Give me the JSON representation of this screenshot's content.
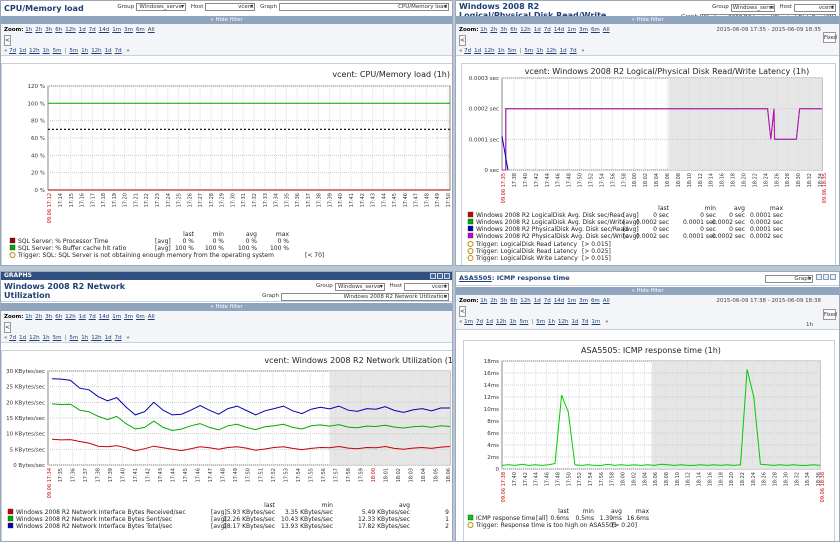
{
  "labels": {
    "group": "Group",
    "host": "Host",
    "graph": "Graph",
    "zoom": "Zoom:",
    "hide_filter": "« Hide filter",
    "hide_filter2": "« Hide filter",
    "all": "All"
  },
  "p1": {
    "title": "CPU/Memory load",
    "group": "Windows_server",
    "host": "vcent",
    "graph": "CPU/Memory load",
    "zoom_items": [
      "1h",
      "2h",
      "3h",
      "6h",
      "12h",
      "1d",
      "7d",
      "14d",
      "1m",
      "3m",
      "6m",
      "All"
    ],
    "zoom_active": "1h",
    "nav_items": [
      "7d",
      "1d",
      "12h",
      "1h",
      "5m",
      "|",
      "5m",
      "1h",
      "12h",
      "1d",
      "7d"
    ],
    "chart_title": "vcent: CPU/Memory load (1h)",
    "date_label": "09.06 17:12",
    "legend_header": [
      "last",
      "min",
      "avg",
      "max"
    ],
    "legend": [
      {
        "color": "#990000",
        "name": "SQL Server: % Processor Time",
        "agg": "[avg]",
        "last": "0 %",
        "min": "0 %",
        "avg": "0 %",
        "max": "0 %"
      },
      {
        "color": "#00aa00",
        "name": "SQL Server: % Buffer cache hit ratio",
        "agg": "[avg]",
        "last": "100 %",
        "min": "100 %",
        "avg": "100 %",
        "max": "100 %"
      }
    ],
    "trigger": "Trigger: SQL: SQL Server is not obtaining enough memory from the operating system",
    "trigger_cond": "[< 70]"
  },
  "p2": {
    "title": "Windows 2008 R2 Logical/Physical Disk Read/Write Latency",
    "group": "Windows_server",
    "host": "vcent",
    "graph": "Windows 2008 R2 Logical/Physical Disk Read/Write Laten",
    "zoom_items": [
      "1h",
      "2h",
      "3h",
      "6h",
      "12h",
      "1d",
      "7d",
      "14d",
      "1m",
      "3m",
      "6m",
      "All"
    ],
    "nav_items": [
      "7d",
      "1d",
      "12h",
      "1h",
      "5m",
      "|",
      "5m",
      "1h",
      "12h",
      "1d",
      "7d"
    ],
    "period_from": "2015-06-09 17:35",
    "period_to": "2015-06-09 18:35",
    "fixed": "Fixed",
    "chart_title": "vcent: Windows 2008 R2 Logical/Physical Disk Read/Write Latency (1h)",
    "date_label_left": "09.06 17:35",
    "date_label_right": "09.06 18:35",
    "legend_header": [
      "last",
      "min",
      "avg",
      "max"
    ],
    "legend": [
      {
        "color": "#cc0000",
        "name": "Windows 2008 R2 LogicalDisk Avg. Disk sec/Read",
        "agg": "[avg]",
        "last": "0 sec",
        "min": "0 sec",
        "avg": "0 sec",
        "max": "0.0001 sec"
      },
      {
        "color": "#00aa00",
        "name": "Windows 2008 R2 LogicalDisk Avg. Disk sec/Write",
        "agg": "[avg]",
        "last": "0.0002 sec",
        "min": "0.0001 sec",
        "avg": "0.0002 sec",
        "max": "0.0002 sec"
      },
      {
        "color": "#0000cc",
        "name": "Windows 2008 R2 PhysicalDisk Avg. Disk sec/Read",
        "agg": "[avg]",
        "last": "0 sec",
        "min": "0 sec",
        "avg": "0 sec",
        "max": "0.0001 sec"
      },
      {
        "color": "#cc00cc",
        "name": "Windows 2008 R2 PhysicalDisk Avg. Disk sec/Write",
        "agg": "[avg]",
        "last": "0.0002 sec",
        "min": "0.0001 sec",
        "avg": "0.0002 sec",
        "max": "0.0002 sec"
      }
    ],
    "triggers": [
      {
        "text": "Trigger: LogicalDisk Read Latency",
        "cond": "[> 0.015]"
      },
      {
        "text": "Trigger: LogicalDisk Read Latency",
        "cond": "[> 0.025]"
      },
      {
        "text": "Trigger: LogicalDisk Write Latency",
        "cond": "[> 0.015]"
      }
    ]
  },
  "p3": {
    "bar": "GRAPHS",
    "title": "Windows 2008 R2 Network Utilization",
    "group": "Windows_server",
    "host": "vcent",
    "graph": "Windows 2008 R2 Network Utilization",
    "zoom_items": [
      "1h",
      "2h",
      "3h",
      "6h",
      "12h",
      "1d",
      "7d",
      "14d",
      "1m",
      "3m",
      "6m",
      "All"
    ],
    "nav_items": [
      "7d",
      "1d",
      "12h",
      "1h",
      "5m",
      "|",
      "5m",
      "1h",
      "12h",
      "1d",
      "7d"
    ],
    "chart_title": "vcent: Windows 2008 R2 Network Utilization (1",
    "date_label": "09.06 17:34",
    "legend_header": [
      "last",
      "min",
      "avg"
    ],
    "legend": [
      {
        "color": "#cc0000",
        "name": "Windows 2008 R2 Network Interface Bytes Received/sec",
        "agg": "[avg]",
        "last": "5.93 KBytes/sec",
        "min": "3.35 KBytes/sec",
        "avg": "5.49 KBytes/sec",
        "max": "9"
      },
      {
        "color": "#00aa00",
        "name": "Windows 2008 R2 Network Interface Bytes Sent/sec",
        "agg": "[avg]",
        "last": "12.26 KBytes/sec",
        "min": "10.43 KBytes/sec",
        "avg": "12.33 KBytes/sec",
        "max": "1"
      },
      {
        "color": "#0000aa",
        "name": "Windows 2008 R2 Network Interface Bytes Total/sec",
        "agg": "[avg]",
        "last": "18.17 KBytes/sec",
        "min": "13.93 KBytes/sec",
        "avg": "17.82 KBytes/sec",
        "max": "2"
      }
    ]
  },
  "p4": {
    "title_link": "ASA5505",
    "title_rest": ": ICMP response time",
    "graph": "Graph",
    "zoom_items": [
      "1h",
      "2h",
      "3h",
      "6h",
      "12h",
      "1d",
      "7d",
      "14d",
      "1m",
      "3m",
      "6m",
      "All"
    ],
    "nav_items": [
      "1m",
      "7d",
      "1d",
      "12h",
      "1h",
      "5m",
      "|",
      "5m",
      "1h",
      "12h",
      "1d",
      "7d",
      "1m"
    ],
    "period_from": "2015-06-09 17:38",
    "period_to": "2015-06-09 18:38",
    "period_len": "1h",
    "fixed": "Fixed",
    "chart_title": "ASA5505: ICMP response time (1h)",
    "date_label_left": "09.06 17:38",
    "date_label_right": "09.06 18:38",
    "legend_header": [
      "last",
      "min",
      "avg",
      "max"
    ],
    "legend": [
      {
        "color": "#00cc00",
        "name": "ICMP response time",
        "agg": "[all]",
        "last": "0.6ms",
        "min": "0.5ms",
        "avg": "1.39ms",
        "max": "16.6ms"
      }
    ],
    "trigger": "Trigger: Response time is too high on ASA5505",
    "trigger_cond": "[> 0.20]"
  },
  "chart_data": [
    {
      "type": "line",
      "title": "vcent: CPU/Memory load (1h)",
      "ylim": [
        0,
        120
      ],
      "yticks": [
        "0 %",
        "20 %",
        "40 %",
        "60 %",
        "80 %",
        "100 %",
        "120 %"
      ],
      "x": [
        "17:14",
        "17:16",
        "17:18",
        "17:20",
        "17:22",
        "17:24",
        "17:26",
        "17:28",
        "17:30",
        "17:32",
        "17:34",
        "17:36",
        "17:38",
        "17:40",
        "17:42",
        "17:44",
        "17:46",
        "17:48",
        "17:50",
        "17:52",
        "17:54",
        "17:56",
        "17:58",
        "18:00",
        "18:02",
        "18:04",
        "18:06",
        "18:08",
        "18:10"
      ],
      "xtick_labels": [
        "17:14",
        "17:15",
        "17:16",
        "17:17",
        "17:18",
        "17:19",
        "17:20",
        "17:21",
        "17:22",
        "17:23",
        "17:24",
        "17:25",
        "17:26",
        "17:27",
        "17:28",
        "17:29",
        "17:30",
        "17:31",
        "17:32",
        "17:33",
        "17:34",
        "17:35",
        "17:36",
        "17:37",
        "17:38",
        "17:39",
        "17:40",
        "17:41",
        "17:42",
        "17:43",
        "17:44",
        "17:45",
        "17:46",
        "17:47",
        "17:48",
        "17:49",
        "17:50"
      ],
      "series": [
        {
          "name": "SQL Server: % Processor Time",
          "color": "#990000",
          "constant": 0
        },
        {
          "name": "SQL Server: % Buffer cache hit ratio",
          "color": "#00aa00",
          "constant": 100
        }
      ],
      "threshold": 70
    },
    {
      "type": "line",
      "title": "vcent: Windows 2008 R2 Logical/Physical Disk Read/Write Latency (1h)",
      "ylim": [
        0,
        0.0003
      ],
      "yticks": [
        "0 sec",
        "0.0001 sec",
        "0.0002 sec",
        "0.0003 sec"
      ],
      "xtick_labels": [
        "17:38",
        "17:40",
        "17:42",
        "17:44",
        "17:46",
        "17:48",
        "17:50",
        "17:52",
        "17:54",
        "17:56",
        "17:58",
        "18:00",
        "18:02",
        "18:04",
        "18:06",
        "18:08",
        "18:10",
        "18:12",
        "18:14",
        "18:16",
        "18:18",
        "18:20",
        "18:22",
        "18:24",
        "18:26",
        "18:28",
        "18:30",
        "18:32",
        "18:34"
      ],
      "series": [
        {
          "name": "Windows 2008 R2 LogicalDisk Avg. Disk sec/Write",
          "color": "#00aa00"
        },
        {
          "name": "Windows 2008 R2 PhysicalDisk Avg. Disk sec/Write",
          "color": "#cc00cc"
        }
      ]
    },
    {
      "type": "line",
      "title": "vcent: Windows 2008 R2 Network Utilization (1",
      "ylim": [
        0,
        30
      ],
      "yticks": [
        "0 Bytes/sec",
        "5 KBytes/sec",
        "10 KBytes/sec",
        "15 KBytes/sec",
        "20 KBytes/sec",
        "25 KBytes/sec",
        "30 KBytes/sec"
      ],
      "xtick_labels": [
        "17:35",
        "17:36",
        "17:37",
        "17:38",
        "17:39",
        "17:40",
        "17:41",
        "17:42",
        "17:43",
        "17:44",
        "17:45",
        "17:46",
        "17:47",
        "17:48",
        "17:49",
        "17:50",
        "17:51",
        "17:52",
        "17:53",
        "17:54",
        "17:55",
        "17:56",
        "17:57",
        "17:58",
        "17:59",
        "18:00",
        "18:01",
        "18:02",
        "18:03",
        "18:04",
        "18:05",
        "18:06"
      ],
      "series": [
        {
          "name": "Windows 2008 R2 Network Interface Bytes Received/sec",
          "color": "#cc0000",
          "values": [
            8.2,
            8.0,
            8.1,
            7.5,
            7.0,
            6.0,
            5.8,
            6.2,
            5.5,
            4.5,
            5.2,
            6.0,
            5.5,
            5.0,
            4.6,
            5.2,
            5.8,
            5.5,
            5.0,
            5.6,
            5.8,
            5.4,
            4.7,
            5.1,
            5.6,
            5.8,
            5.3,
            4.9,
            5.3,
            5.6,
            5.5,
            5.9,
            5.4,
            5.2,
            5.6,
            5.5,
            5.9,
            5.3,
            5.0,
            5.4,
            5.6,
            5.3,
            5.7,
            5.9
          ]
        },
        {
          "name": "Windows 2008 R2 Network Interface Bytes Sent/sec",
          "color": "#00aa00",
          "values": [
            19.5,
            19.3,
            19.4,
            17.5,
            17.0,
            15.5,
            14.5,
            15.5,
            13.2,
            11.5,
            12.0,
            14.0,
            12.0,
            11.0,
            11.5,
            12.5,
            13.2,
            12.0,
            11.2,
            12.5,
            13.0,
            12.0,
            11.3,
            12.2,
            12.5,
            13.0,
            12.0,
            11.5,
            12.5,
            12.8,
            12.4,
            12.9,
            12.1,
            11.9,
            12.4,
            12.3,
            12.7,
            12.1,
            11.8,
            12.2,
            12.4,
            12.0,
            12.5,
            12.3
          ]
        },
        {
          "name": "Windows 2008 R2 Network Interface Bytes Total/sec",
          "color": "#0000aa",
          "values": [
            27.5,
            27.4,
            27.0,
            24.5,
            24.0,
            21.8,
            20.5,
            21.5,
            18.5,
            16.0,
            17.0,
            20.0,
            17.5,
            16.0,
            16.2,
            17.5,
            19.0,
            17.5,
            16.2,
            18.0,
            18.8,
            17.4,
            16.0,
            17.3,
            18.0,
            18.8,
            17.3,
            16.4,
            17.8,
            18.4,
            17.9,
            18.8,
            17.5,
            17.1,
            18.0,
            17.8,
            18.6,
            17.4,
            16.8,
            17.6,
            18.0,
            17.3,
            18.2,
            18.2
          ]
        }
      ]
    },
    {
      "type": "line",
      "title": "ASA5505: ICMP response time (1h)",
      "ylim": [
        0,
        18
      ],
      "yticks": [
        "0",
        "2ms",
        "4ms",
        "6ms",
        "8ms",
        "10ms",
        "12ms",
        "14ms",
        "16ms",
        "18ms"
      ],
      "xtick_labels": [
        "17:40",
        "17:42",
        "17:44",
        "17:46",
        "17:48",
        "17:50",
        "17:52",
        "17:54",
        "17:56",
        "17:58",
        "18:00",
        "18:02",
        "18:04",
        "18:06",
        "18:08",
        "18:10",
        "18:12",
        "18:14",
        "18:16",
        "18:18",
        "18:20",
        "18:22",
        "18:24",
        "18:26",
        "18:28",
        "18:30",
        "18:32",
        "18:34",
        "18:36"
      ],
      "series": [
        {
          "name": "ICMP response time",
          "color": "#00cc00",
          "values": [
            0.6,
            0.7,
            0.6,
            0.8,
            0.6,
            0.7,
            0.6,
            0.7,
            0.9,
            12.3,
            9.5,
            0.7,
            0.6,
            0.7,
            0.6,
            0.6,
            0.8,
            0.6,
            0.7,
            0.6,
            0.7,
            0.6,
            0.7,
            0.6,
            0.8,
            0.7,
            0.6,
            0.7,
            0.6,
            0.6,
            0.7,
            0.6,
            0.7,
            0.6,
            0.7,
            0.6,
            0.7,
            16.6,
            12.0,
            0.8,
            0.7,
            0.6,
            0.7,
            0.6,
            0.7,
            0.6,
            0.6,
            0.7,
            0.6
          ]
        }
      ]
    }
  ]
}
